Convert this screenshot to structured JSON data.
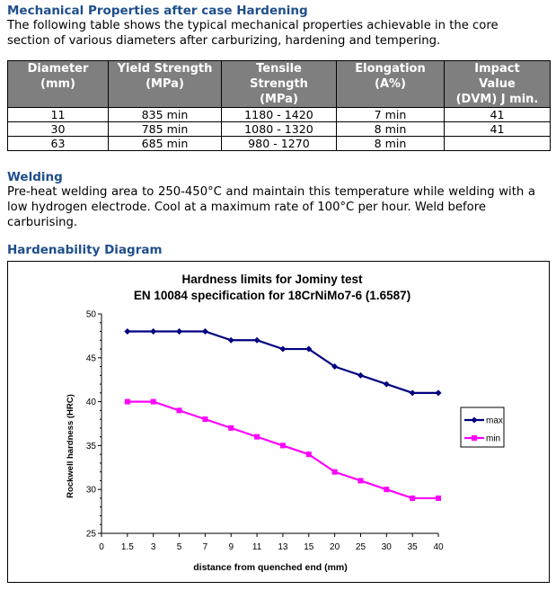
{
  "mechanical": {
    "heading": "Mechanical Properties after case Hardening",
    "intro_line1": "The following table shows the typical mechanical properties achievable in the core",
    "intro_line2": "section of various diameters after carburizing, hardening and tempering.",
    "headers": [
      [
        "Diameter",
        "(mm)"
      ],
      [
        "Yield Strength",
        "(MPa)"
      ],
      [
        "Tensile",
        "Strength",
        "(MPa)"
      ],
      [
        "Elongation",
        "(A%)"
      ],
      [
        "Impact",
        "Value",
        "(DVM) J min."
      ]
    ],
    "rows": [
      [
        "11",
        "835 min",
        "1180 - 1420",
        "7 min",
        "41"
      ],
      [
        "30",
        "785 min",
        "1080 - 1320",
        "8 min",
        "41"
      ],
      [
        "63",
        "685 min",
        "980 - 1270",
        "8 min",
        ""
      ]
    ]
  },
  "welding": {
    "heading": "Welding",
    "line1": "Pre-heat welding area to 250-450°C and maintain this temperature while welding with",
    "line2": "a low hydrogen electrode. Cool at a maximum rate of 100°C per hour. Weld before",
    "line3": "carburising."
  },
  "hardenability": {
    "heading": "Hardenability Diagram"
  },
  "chart_data": {
    "type": "line",
    "title": "Hardness limits for Jominy test",
    "subtitle": "EN 10084 specification for 18CrNiMo7-6 (1.6587)",
    "xlabel": "distance from quenched end (mm)",
    "ylabel": "Rockwell hardness (HRC)",
    "categories": [
      "0",
      "1.5",
      "3",
      "5",
      "7",
      "9",
      "11",
      "13",
      "15",
      "20",
      "25",
      "30",
      "35",
      "40"
    ],
    "ylim": [
      25,
      50
    ],
    "yticks": [
      "25",
      "30",
      "35",
      "40",
      "45",
      "50"
    ],
    "grid": false,
    "legend": "right",
    "series": [
      {
        "name": "max",
        "color": "#000080",
        "values": [
          null,
          48,
          48,
          48,
          48,
          47,
          47,
          46,
          46,
          44,
          43,
          42,
          41,
          41
        ]
      },
      {
        "name": "min",
        "color": "#ff00ff",
        "values": [
          null,
          40,
          40,
          39,
          38,
          37,
          36,
          35,
          34,
          32,
          31,
          30,
          29,
          29
        ]
      }
    ]
  }
}
